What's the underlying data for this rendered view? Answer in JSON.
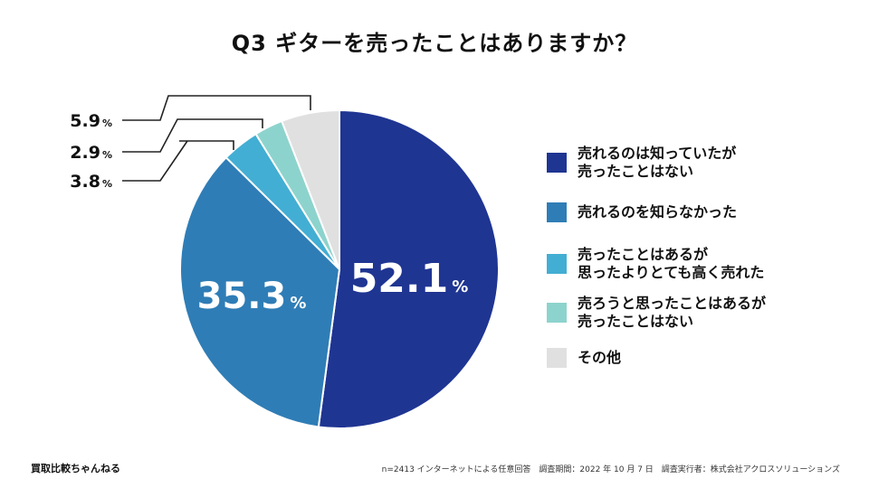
{
  "title": "Q3 ギターを売ったことはありますか？",
  "chart_data": {
    "type": "pie",
    "title": "Q3 ギターを売ったことはありますか？",
    "start": "top, clockwise",
    "slices": [
      {
        "label": "売れるのは知っていたが\n売ったことはない",
        "value": 52.1,
        "value_text": "52.1",
        "color": "#1f3592"
      },
      {
        "label": "売れるのを知らなかった",
        "value": 35.3,
        "value_text": "35.3",
        "color": "#2f7db6"
      },
      {
        "label": "売ったことはあるが\n思ったよりとても高く売れた",
        "value": 3.8,
        "value_text": "3.8",
        "color": "#43aed3"
      },
      {
        "label": "売ろうと思ったことはあるが\n売ったことはない",
        "value": 2.9,
        "value_text": "2.9",
        "color": "#8dd3cd"
      },
      {
        "label": "その他",
        "value": 5.9,
        "value_text": "5.9",
        "color": "#e0e0e0"
      }
    ],
    "unit": "%"
  },
  "brand": "買取比較ちゃんねる",
  "footnote": "n=2413 インターネットによる任意回答　調査期間：2022 年 10 月 7 日　調査実行者：株式会社アクロスソリューションズ"
}
